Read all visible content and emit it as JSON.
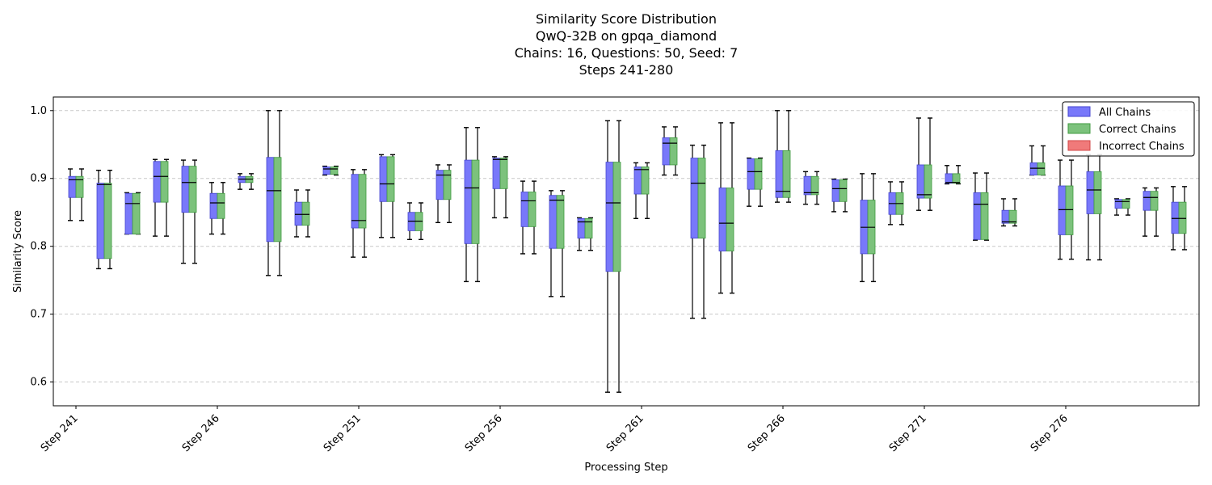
{
  "chart_data": {
    "type": "boxplot",
    "title_lines": [
      "Similarity Score Distribution",
      "QwQ-32B on gpqa_diamond",
      "Chains: 16, Questions: 50, Seed: 7",
      "Steps 241-280"
    ],
    "xlabel": "Processing Step",
    "ylabel": "Similarity Score",
    "ylim": [
      0.565,
      1.02
    ],
    "yticks": [
      0.6,
      0.7,
      0.8,
      0.9,
      1.0
    ],
    "ytick_labels": [
      "0.6",
      "0.7",
      "0.8",
      "0.9",
      "1.0"
    ],
    "grid": "horizontal dashed",
    "legend_position": "top-right",
    "legend": [
      {
        "name": "All Chains",
        "color": "#7878fa",
        "edge": "#4545d0"
      },
      {
        "name": "Correct Chains",
        "color": "#7cc27c",
        "edge": "#3f9a3f"
      },
      {
        "name": "Incorrect Chains",
        "color": "#f07a7a",
        "edge": "#d04545"
      }
    ],
    "xtick_steps": [
      241,
      246,
      251,
      256,
      261,
      266,
      271,
      276
    ],
    "xtick_labels": [
      "Step 241",
      "Step 246",
      "Step 251",
      "Step 256",
      "Step 261",
      "Step 266",
      "Step 271",
      "Step 276"
    ],
    "steps": [
      {
        "step": 241,
        "whislo": 0.838,
        "q1": 0.872,
        "med": 0.898,
        "q3": 0.903,
        "whishi": 0.914
      },
      {
        "step": 242,
        "whislo": 0.767,
        "q1": 0.782,
        "med": 0.891,
        "q3": 0.893,
        "whishi": 0.912
      },
      {
        "step": 243,
        "whislo": 0.818,
        "q1": 0.818,
        "med": 0.863,
        "q3": 0.878,
        "whishi": 0.879
      },
      {
        "step": 244,
        "whislo": 0.815,
        "q1": 0.865,
        "med": 0.903,
        "q3": 0.925,
        "whishi": 0.928
      },
      {
        "step": 245,
        "whislo": 0.775,
        "q1": 0.85,
        "med": 0.894,
        "q3": 0.918,
        "whishi": 0.927
      },
      {
        "step": 246,
        "whislo": 0.818,
        "q1": 0.841,
        "med": 0.864,
        "q3": 0.878,
        "whishi": 0.894
      },
      {
        "step": 247,
        "whislo": 0.884,
        "q1": 0.894,
        "med": 0.899,
        "q3": 0.903,
        "whishi": 0.907
      },
      {
        "step": 248,
        "whislo": 0.757,
        "q1": 0.807,
        "med": 0.882,
        "q3": 0.931,
        "whishi": 1.0
      },
      {
        "step": 249,
        "whislo": 0.814,
        "q1": 0.831,
        "med": 0.847,
        "q3": 0.865,
        "whishi": 0.883
      },
      {
        "step": 250,
        "whislo": 0.905,
        "q1": 0.906,
        "med": 0.914,
        "q3": 0.917,
        "whishi": 0.918
      },
      {
        "step": 251,
        "whislo": 0.784,
        "q1": 0.827,
        "med": 0.838,
        "q3": 0.906,
        "whishi": 0.913
      },
      {
        "step": 252,
        "whislo": 0.813,
        "q1": 0.866,
        "med": 0.892,
        "q3": 0.932,
        "whishi": 0.935
      },
      {
        "step": 253,
        "whislo": 0.81,
        "q1": 0.823,
        "med": 0.837,
        "q3": 0.85,
        "whishi": 0.864
      },
      {
        "step": 254,
        "whislo": 0.835,
        "q1": 0.869,
        "med": 0.905,
        "q3": 0.912,
        "whishi": 0.92
      },
      {
        "step": 255,
        "whislo": 0.748,
        "q1": 0.804,
        "med": 0.886,
        "q3": 0.927,
        "whishi": 0.975
      },
      {
        "step": 256,
        "whislo": 0.842,
        "q1": 0.885,
        "med": 0.928,
        "q3": 0.93,
        "whishi": 0.932
      },
      {
        "step": 257,
        "whislo": 0.789,
        "q1": 0.829,
        "med": 0.867,
        "q3": 0.88,
        "whishi": 0.896
      },
      {
        "step": 258,
        "whislo": 0.726,
        "q1": 0.797,
        "med": 0.868,
        "q3": 0.875,
        "whishi": 0.882
      },
      {
        "step": 259,
        "whislo": 0.794,
        "q1": 0.812,
        "med": 0.836,
        "q3": 0.841,
        "whishi": 0.842
      },
      {
        "step": 260,
        "whislo": 0.585,
        "q1": 0.763,
        "med": 0.864,
        "q3": 0.924,
        "whishi": 0.985
      },
      {
        "step": 261,
        "whislo": 0.841,
        "q1": 0.877,
        "med": 0.913,
        "q3": 0.917,
        "whishi": 0.923
      },
      {
        "step": 262,
        "whislo": 0.905,
        "q1": 0.92,
        "med": 0.952,
        "q3": 0.96,
        "whishi": 0.976
      },
      {
        "step": 263,
        "whislo": 0.694,
        "q1": 0.812,
        "med": 0.893,
        "q3": 0.93,
        "whishi": 0.949
      },
      {
        "step": 264,
        "whislo": 0.731,
        "q1": 0.793,
        "med": 0.834,
        "q3": 0.886,
        "whishi": 0.982
      },
      {
        "step": 265,
        "whislo": 0.859,
        "q1": 0.884,
        "med": 0.91,
        "q3": 0.929,
        "whishi": 0.93
      },
      {
        "step": 266,
        "whislo": 0.865,
        "q1": 0.872,
        "med": 0.881,
        "q3": 0.941,
        "whishi": 1.0
      },
      {
        "step": 267,
        "whislo": 0.862,
        "q1": 0.876,
        "med": 0.879,
        "q3": 0.903,
        "whishi": 0.91
      },
      {
        "step": 268,
        "whislo": 0.851,
        "q1": 0.866,
        "med": 0.885,
        "q3": 0.898,
        "whishi": 0.899
      },
      {
        "step": 269,
        "whislo": 0.748,
        "q1": 0.789,
        "med": 0.828,
        "q3": 0.868,
        "whishi": 0.907
      },
      {
        "step": 270,
        "whislo": 0.832,
        "q1": 0.847,
        "med": 0.863,
        "q3": 0.879,
        "whishi": 0.895
      },
      {
        "step": 271,
        "whislo": 0.853,
        "q1": 0.871,
        "med": 0.876,
        "q3": 0.92,
        "whishi": 0.989
      },
      {
        "step": 272,
        "whislo": 0.892,
        "q1": 0.893,
        "med": 0.894,
        "q3": 0.907,
        "whishi": 0.919
      },
      {
        "step": 273,
        "whislo": 0.809,
        "q1": 0.81,
        "med": 0.862,
        "q3": 0.879,
        "whishi": 0.908
      },
      {
        "step": 274,
        "whislo": 0.83,
        "q1": 0.834,
        "med": 0.836,
        "q3": 0.853,
        "whishi": 0.87
      },
      {
        "step": 275,
        "whislo": 0.905,
        "q1": 0.905,
        "med": 0.915,
        "q3": 0.923,
        "whishi": 0.948
      },
      {
        "step": 276,
        "whislo": 0.781,
        "q1": 0.817,
        "med": 0.854,
        "q3": 0.889,
        "whishi": 0.927
      },
      {
        "step": 277,
        "whislo": 0.78,
        "q1": 0.848,
        "med": 0.883,
        "q3": 0.91,
        "whishi": 0.935
      },
      {
        "step": 278,
        "whislo": 0.846,
        "q1": 0.856,
        "med": 0.866,
        "q3": 0.869,
        "whishi": 0.87
      },
      {
        "step": 279,
        "whislo": 0.815,
        "q1": 0.853,
        "med": 0.872,
        "q3": 0.881,
        "whishi": 0.886
      },
      {
        "step": 280,
        "whislo": 0.795,
        "q1": 0.819,
        "med": 0.841,
        "q3": 0.865,
        "whishi": 0.888
      }
    ]
  }
}
